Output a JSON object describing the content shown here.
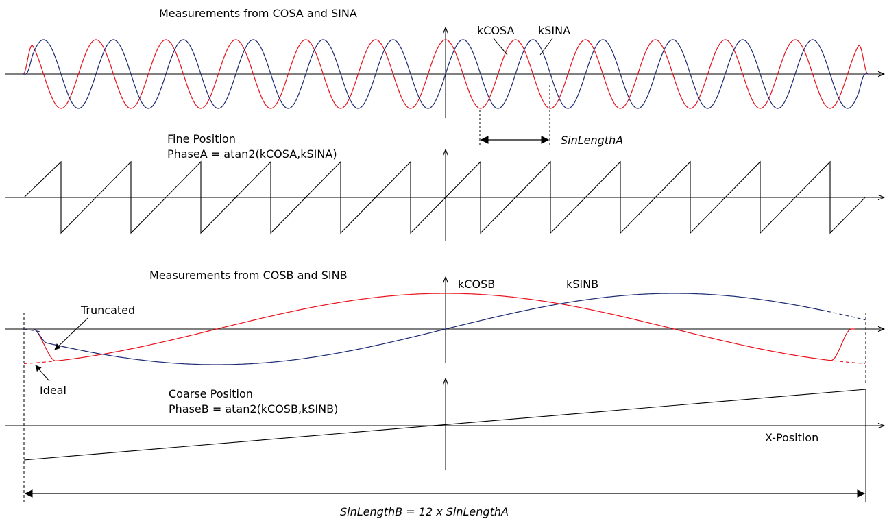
{
  "colors": {
    "cos": "#e8111b",
    "sin": "#1c2a72",
    "axis": "#000000"
  },
  "panel_a": {
    "title": "Measurements from COSA and SINA",
    "cos_label": "kCOSA",
    "sin_label": "kSINA",
    "period_label": "SinLengthA"
  },
  "fine": {
    "title": "Fine Position",
    "formula": "PhaseA = atan2(kCOSA,kSINA)"
  },
  "panel_b": {
    "title": "Measurements from COSB and SINB",
    "cos_label": "kCOSB",
    "sin_label": "kSINB",
    "truncated_label": "Truncated",
    "ideal_label": "Ideal"
  },
  "coarse": {
    "title": "Coarse Position",
    "formula": "PhaseB = atan2(kCOSB,kSINB)",
    "x_label": "X-Position"
  },
  "span_label": "SinLengthB = 12 x SinLengthA"
}
